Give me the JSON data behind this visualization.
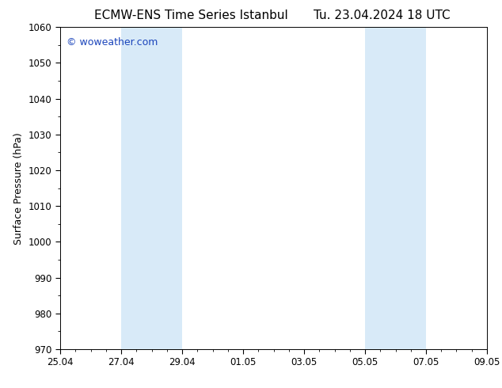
{
  "title_left": "ECMW-ENS Time Series Istanbul",
  "title_right": "Tu. 23.04.2024 18 UTC",
  "ylabel": "Surface Pressure (hPa)",
  "ylim": [
    970,
    1060
  ],
  "yticks": [
    970,
    980,
    990,
    1000,
    1010,
    1020,
    1030,
    1040,
    1050,
    1060
  ],
  "xtick_labels": [
    "25.04",
    "27.04",
    "29.04",
    "01.05",
    "03.05",
    "05.05",
    "07.05",
    "09.05"
  ],
  "xtick_positions": [
    0,
    2,
    4,
    6,
    8,
    10,
    12,
    14
  ],
  "xlim": [
    0,
    14
  ],
  "shade_bands": [
    {
      "x_start": 2,
      "x_end": 4
    },
    {
      "x_start": 10,
      "x_end": 12
    }
  ],
  "shade_color": "#d8eaf8",
  "background_color": "#ffffff",
  "plot_bg_color": "#ffffff",
  "watermark_text": "© woweather.com",
  "watermark_color": "#1a44bb",
  "title_fontsize": 11,
  "label_fontsize": 9,
  "tick_fontsize": 8.5,
  "watermark_fontsize": 9
}
